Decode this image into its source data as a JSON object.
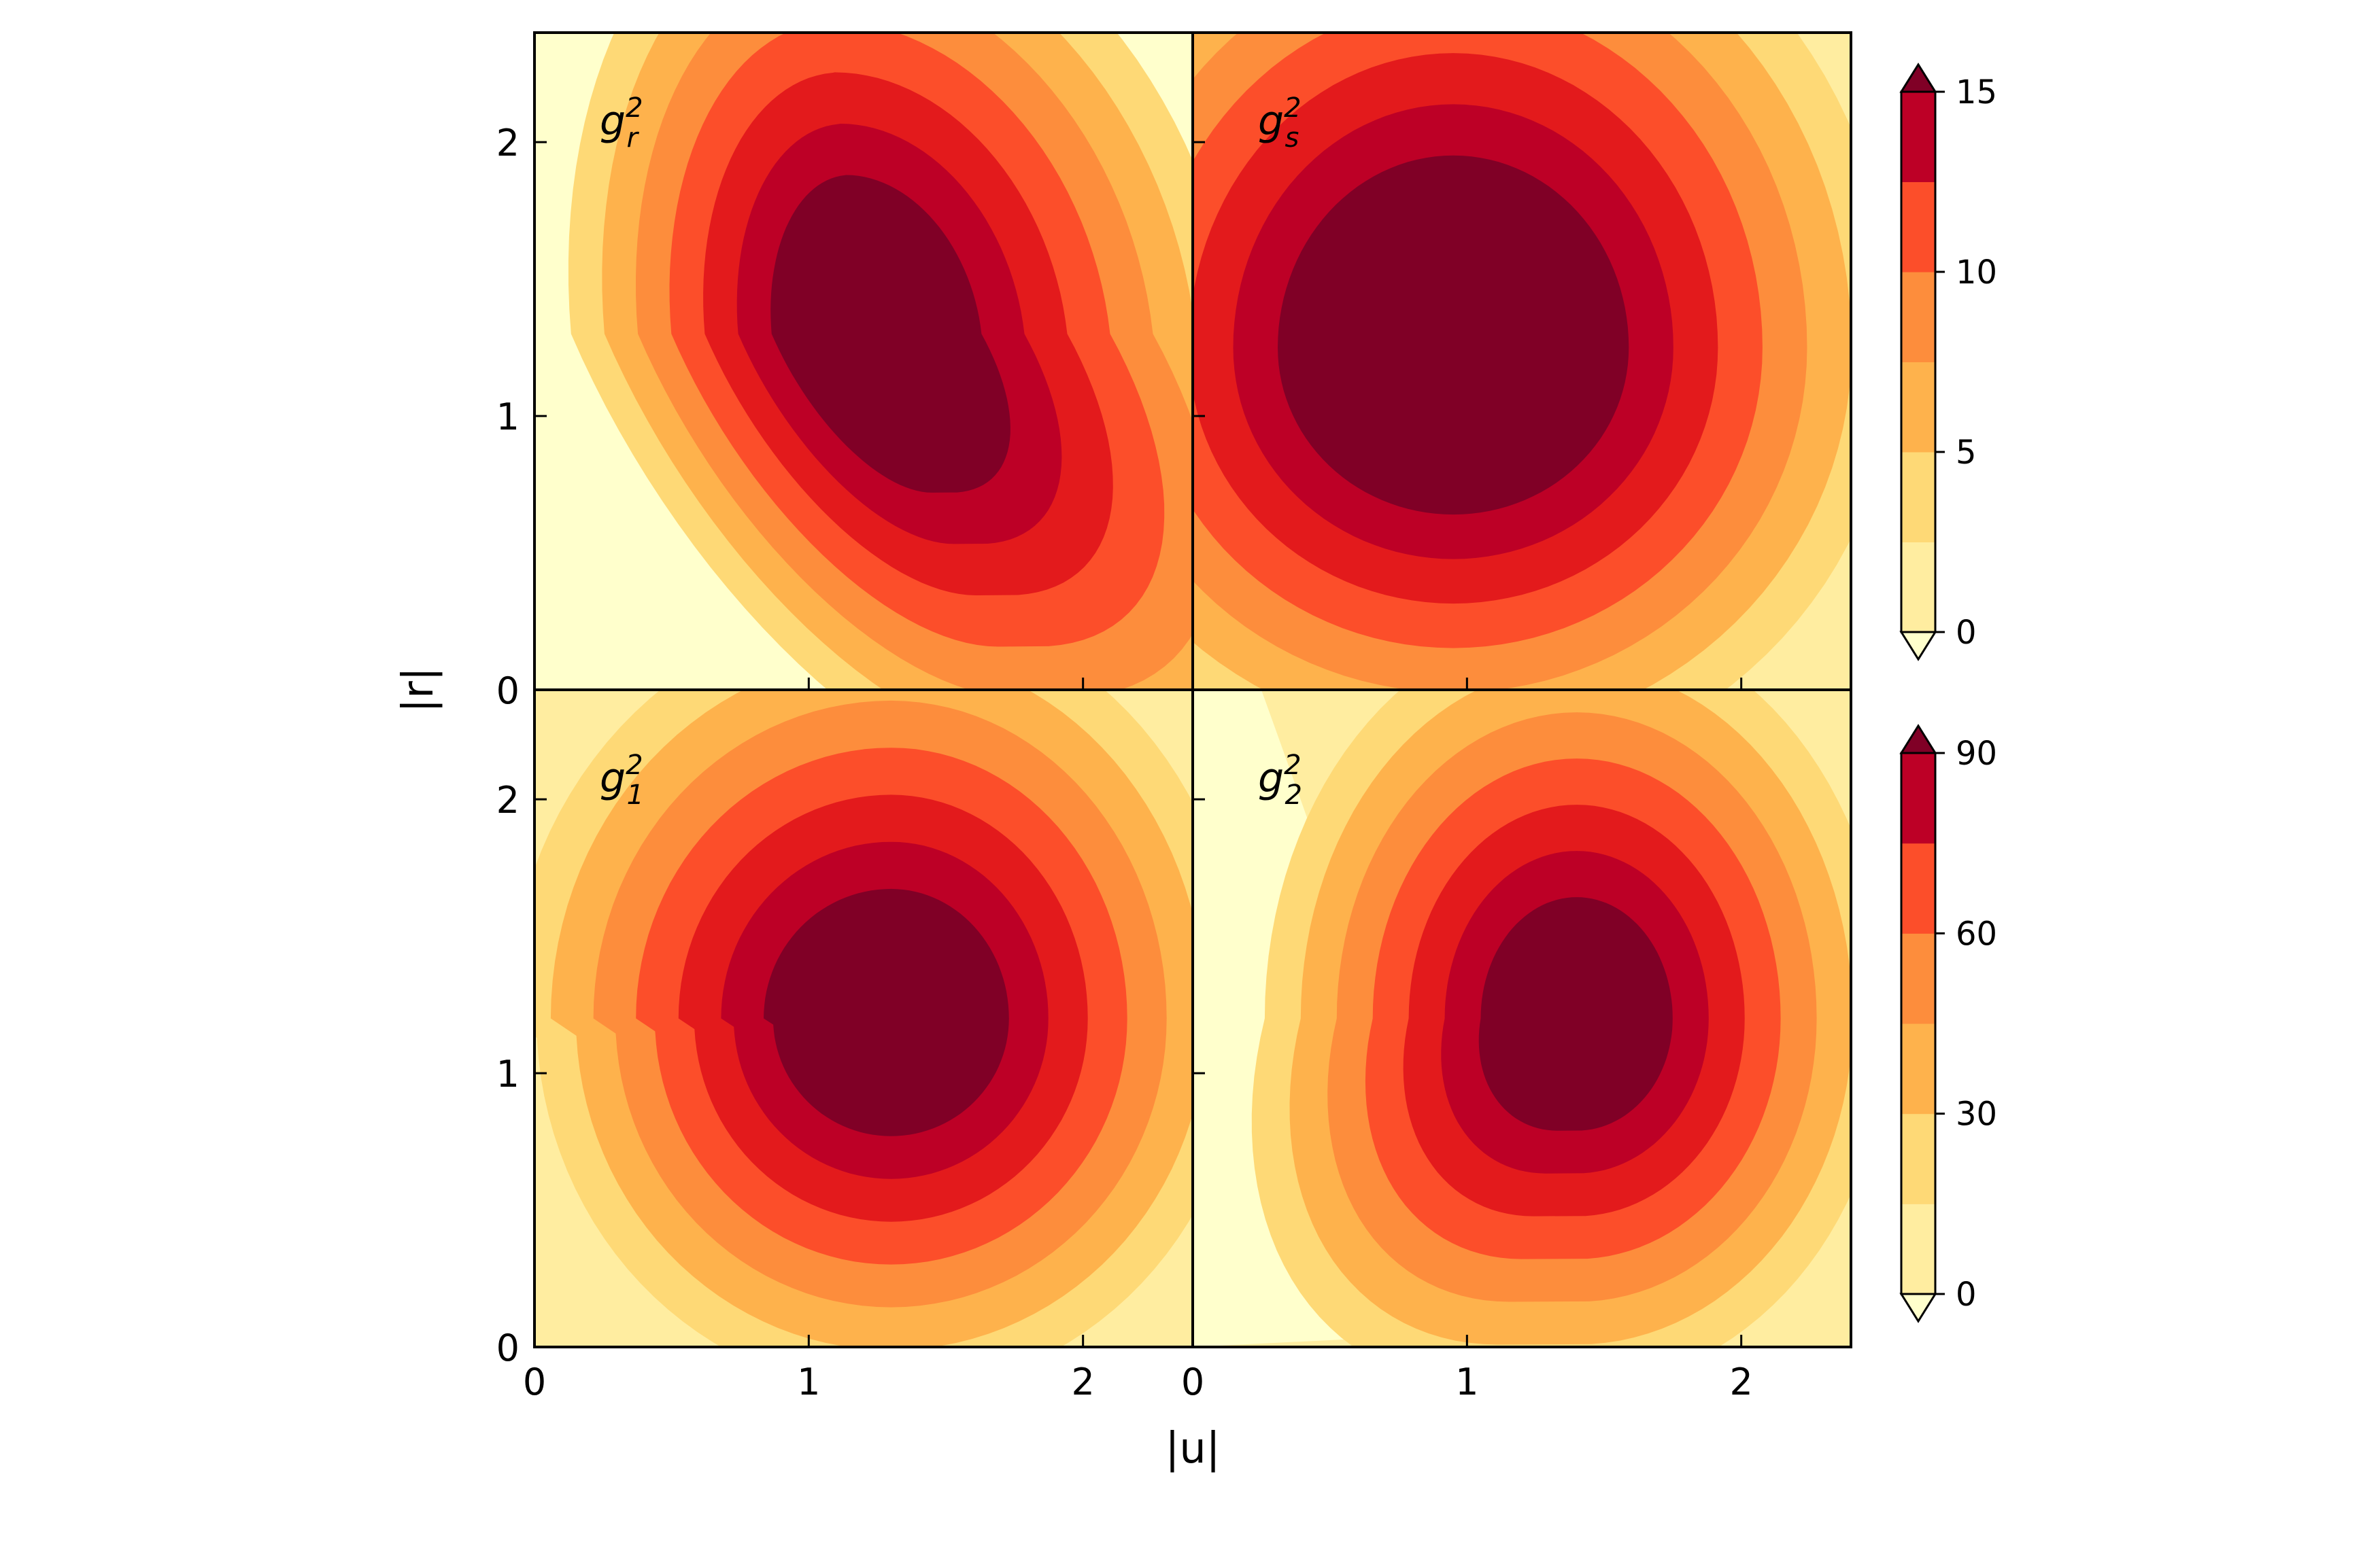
{
  "chart_data": {
    "type": "filled-contour",
    "xlabel": "|u|",
    "ylabel": "|r|",
    "xlim": [
      0,
      2.4
    ],
    "ylim": [
      0,
      2.4
    ],
    "xticks": [
      0,
      1,
      2
    ],
    "yticks": [
      0,
      1,
      2
    ],
    "colormap": [
      "#ffffcc",
      "#ffeda0",
      "#fed976",
      "#feb24c",
      "#fd8d3c",
      "#fc4e2a",
      "#e31a1c",
      "#bd0026",
      "#800026"
    ],
    "panels": [
      {
        "label": "g_r^2",
        "label_base": "g",
        "label_sub": "r",
        "label_sup": "2",
        "colorbar_group": 0,
        "shape": "tilted",
        "peak": {
          "u": 1.2,
          "r": 1.3
        }
      },
      {
        "label": "g_s^2",
        "label_base": "g",
        "label_sub": "s",
        "label_sup": "2",
        "colorbar_group": 0,
        "shape": "broad",
        "peak": {
          "u": 0.95,
          "r": 1.25
        }
      },
      {
        "label": "g_1^2",
        "label_base": "g",
        "label_sub": "1",
        "label_sup": "2",
        "colorbar_group": 1,
        "shape": "round",
        "peak": {
          "u": 1.3,
          "r": 1.2
        }
      },
      {
        "label": "g_2^2",
        "label_base": "g",
        "label_sub": "2",
        "label_sup": "2",
        "colorbar_group": 1,
        "shape": "round-shifted",
        "peak": {
          "u": 1.4,
          "r": 1.2
        }
      }
    ],
    "colorbars": [
      {
        "levels": [
          0,
          2.5,
          5,
          7.5,
          10,
          12.5,
          15
        ],
        "ticks": [
          0,
          5,
          10,
          15
        ],
        "tick_labels": [
          "0",
          "5",
          "10",
          "15"
        ],
        "extend": "both"
      },
      {
        "levels": [
          0,
          15,
          30,
          45,
          60,
          75,
          90
        ],
        "ticks": [
          0,
          30,
          60,
          90
        ],
        "tick_labels": [
          "0",
          "30",
          "60",
          "90"
        ],
        "extend": "both"
      }
    ],
    "grid": false
  }
}
